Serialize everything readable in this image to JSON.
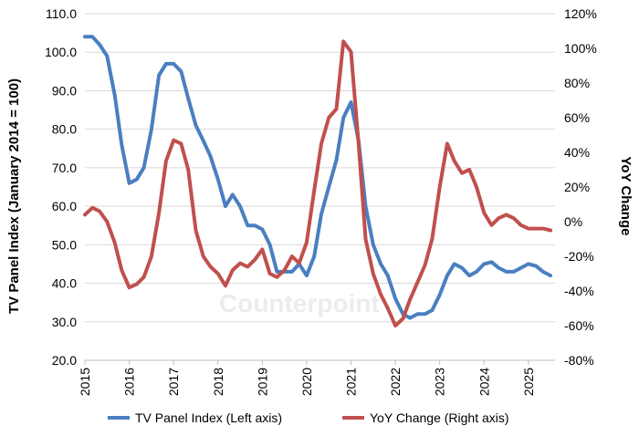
{
  "chart_data": {
    "type": "line",
    "title": "",
    "ylabel_left": "TV Panel Index (January 2014 = 100)",
    "ylabel_right": "YoY Change",
    "x_ticks": [
      "2015",
      "2016",
      "2017",
      "2018",
      "2019",
      "2020",
      "2021",
      "2022",
      "2023",
      "2024",
      "2025"
    ],
    "xlim": [
      2015,
      2025.6
    ],
    "ylim_left": [
      20,
      110
    ],
    "ylim_right": [
      -80,
      120
    ],
    "yticks_left": [
      "20.0",
      "30.0",
      "40.0",
      "50.0",
      "60.0",
      "70.0",
      "80.0",
      "90.0",
      "100.0",
      "110.0"
    ],
    "yticks_right": [
      "-80%",
      "-60%",
      "-40%",
      "-20%",
      "0%",
      "20%",
      "40%",
      "60%",
      "80%",
      "100%",
      "120%"
    ],
    "grid": "horizontal",
    "legend_position": "bottom",
    "watermark": "Counterpoint",
    "series": [
      {
        "name": "TV Panel Index (Left axis)",
        "axis": "left",
        "color": "#4a7fc1",
        "x": [
          2015.0,
          2015.17,
          2015.33,
          2015.5,
          2015.67,
          2015.83,
          2016.0,
          2016.17,
          2016.33,
          2016.5,
          2016.67,
          2016.83,
          2017.0,
          2017.17,
          2017.33,
          2017.5,
          2017.67,
          2017.83,
          2018.0,
          2018.17,
          2018.33,
          2018.5,
          2018.67,
          2018.83,
          2019.0,
          2019.17,
          2019.33,
          2019.5,
          2019.67,
          2019.83,
          2020.0,
          2020.17,
          2020.33,
          2020.5,
          2020.67,
          2020.83,
          2021.0,
          2021.17,
          2021.33,
          2021.5,
          2021.67,
          2021.83,
          2022.0,
          2022.17,
          2022.33,
          2022.5,
          2022.67,
          2022.83,
          2023.0,
          2023.17,
          2023.33,
          2023.5,
          2023.67,
          2023.83,
          2024.0,
          2024.17,
          2024.33,
          2024.5,
          2024.67,
          2024.83,
          2025.0,
          2025.17,
          2025.33,
          2025.5
        ],
        "values": [
          104,
          104,
          102,
          99,
          89,
          76,
          66,
          67,
          70,
          80,
          94,
          97,
          97,
          95,
          88,
          81,
          77,
          73,
          67,
          60,
          63,
          60,
          55,
          55,
          54,
          50,
          43,
          43,
          43,
          45,
          42,
          47,
          58,
          65,
          72,
          83,
          87,
          77,
          60,
          50,
          45,
          42,
          36,
          32,
          31,
          32,
          32,
          33,
          37,
          42,
          45,
          44,
          42,
          43,
          45,
          45.5,
          44,
          43,
          43,
          44,
          45,
          44.5,
          43,
          42
        ]
      },
      {
        "name": "YoY Change (Right axis)",
        "axis": "right",
        "color": "#c0504d",
        "x": [
          2015.0,
          2015.17,
          2015.33,
          2015.5,
          2015.67,
          2015.83,
          2016.0,
          2016.17,
          2016.33,
          2016.5,
          2016.67,
          2016.83,
          2017.0,
          2017.17,
          2017.33,
          2017.5,
          2017.67,
          2017.83,
          2018.0,
          2018.17,
          2018.33,
          2018.5,
          2018.67,
          2018.83,
          2019.0,
          2019.17,
          2019.33,
          2019.5,
          2019.67,
          2019.83,
          2020.0,
          2020.17,
          2020.33,
          2020.5,
          2020.67,
          2020.83,
          2021.0,
          2021.17,
          2021.33,
          2021.5,
          2021.67,
          2021.83,
          2022.0,
          2022.17,
          2022.33,
          2022.5,
          2022.67,
          2022.83,
          2023.0,
          2023.17,
          2023.33,
          2023.5,
          2023.67,
          2023.83,
          2024.0,
          2024.17,
          2024.33,
          2024.5,
          2024.67,
          2024.83,
          2025.0,
          2025.17,
          2025.33,
          2025.5
        ],
        "values": [
          4,
          8,
          6,
          0,
          -12,
          -28,
          -38,
          -36,
          -32,
          -20,
          5,
          35,
          47,
          45,
          30,
          -5,
          -20,
          -26,
          -30,
          -37,
          -28,
          -24,
          -26,
          -22,
          -16,
          -30,
          -32,
          -28,
          -20,
          -24,
          -12,
          18,
          45,
          60,
          65,
          104,
          98,
          45,
          -10,
          -30,
          -42,
          -50,
          -60,
          -56,
          -45,
          -35,
          -25,
          -10,
          20,
          45,
          35,
          28,
          30,
          20,
          5,
          -2,
          2,
          4,
          2,
          -2,
          -4,
          -4,
          -4,
          -5
        ]
      }
    ]
  }
}
